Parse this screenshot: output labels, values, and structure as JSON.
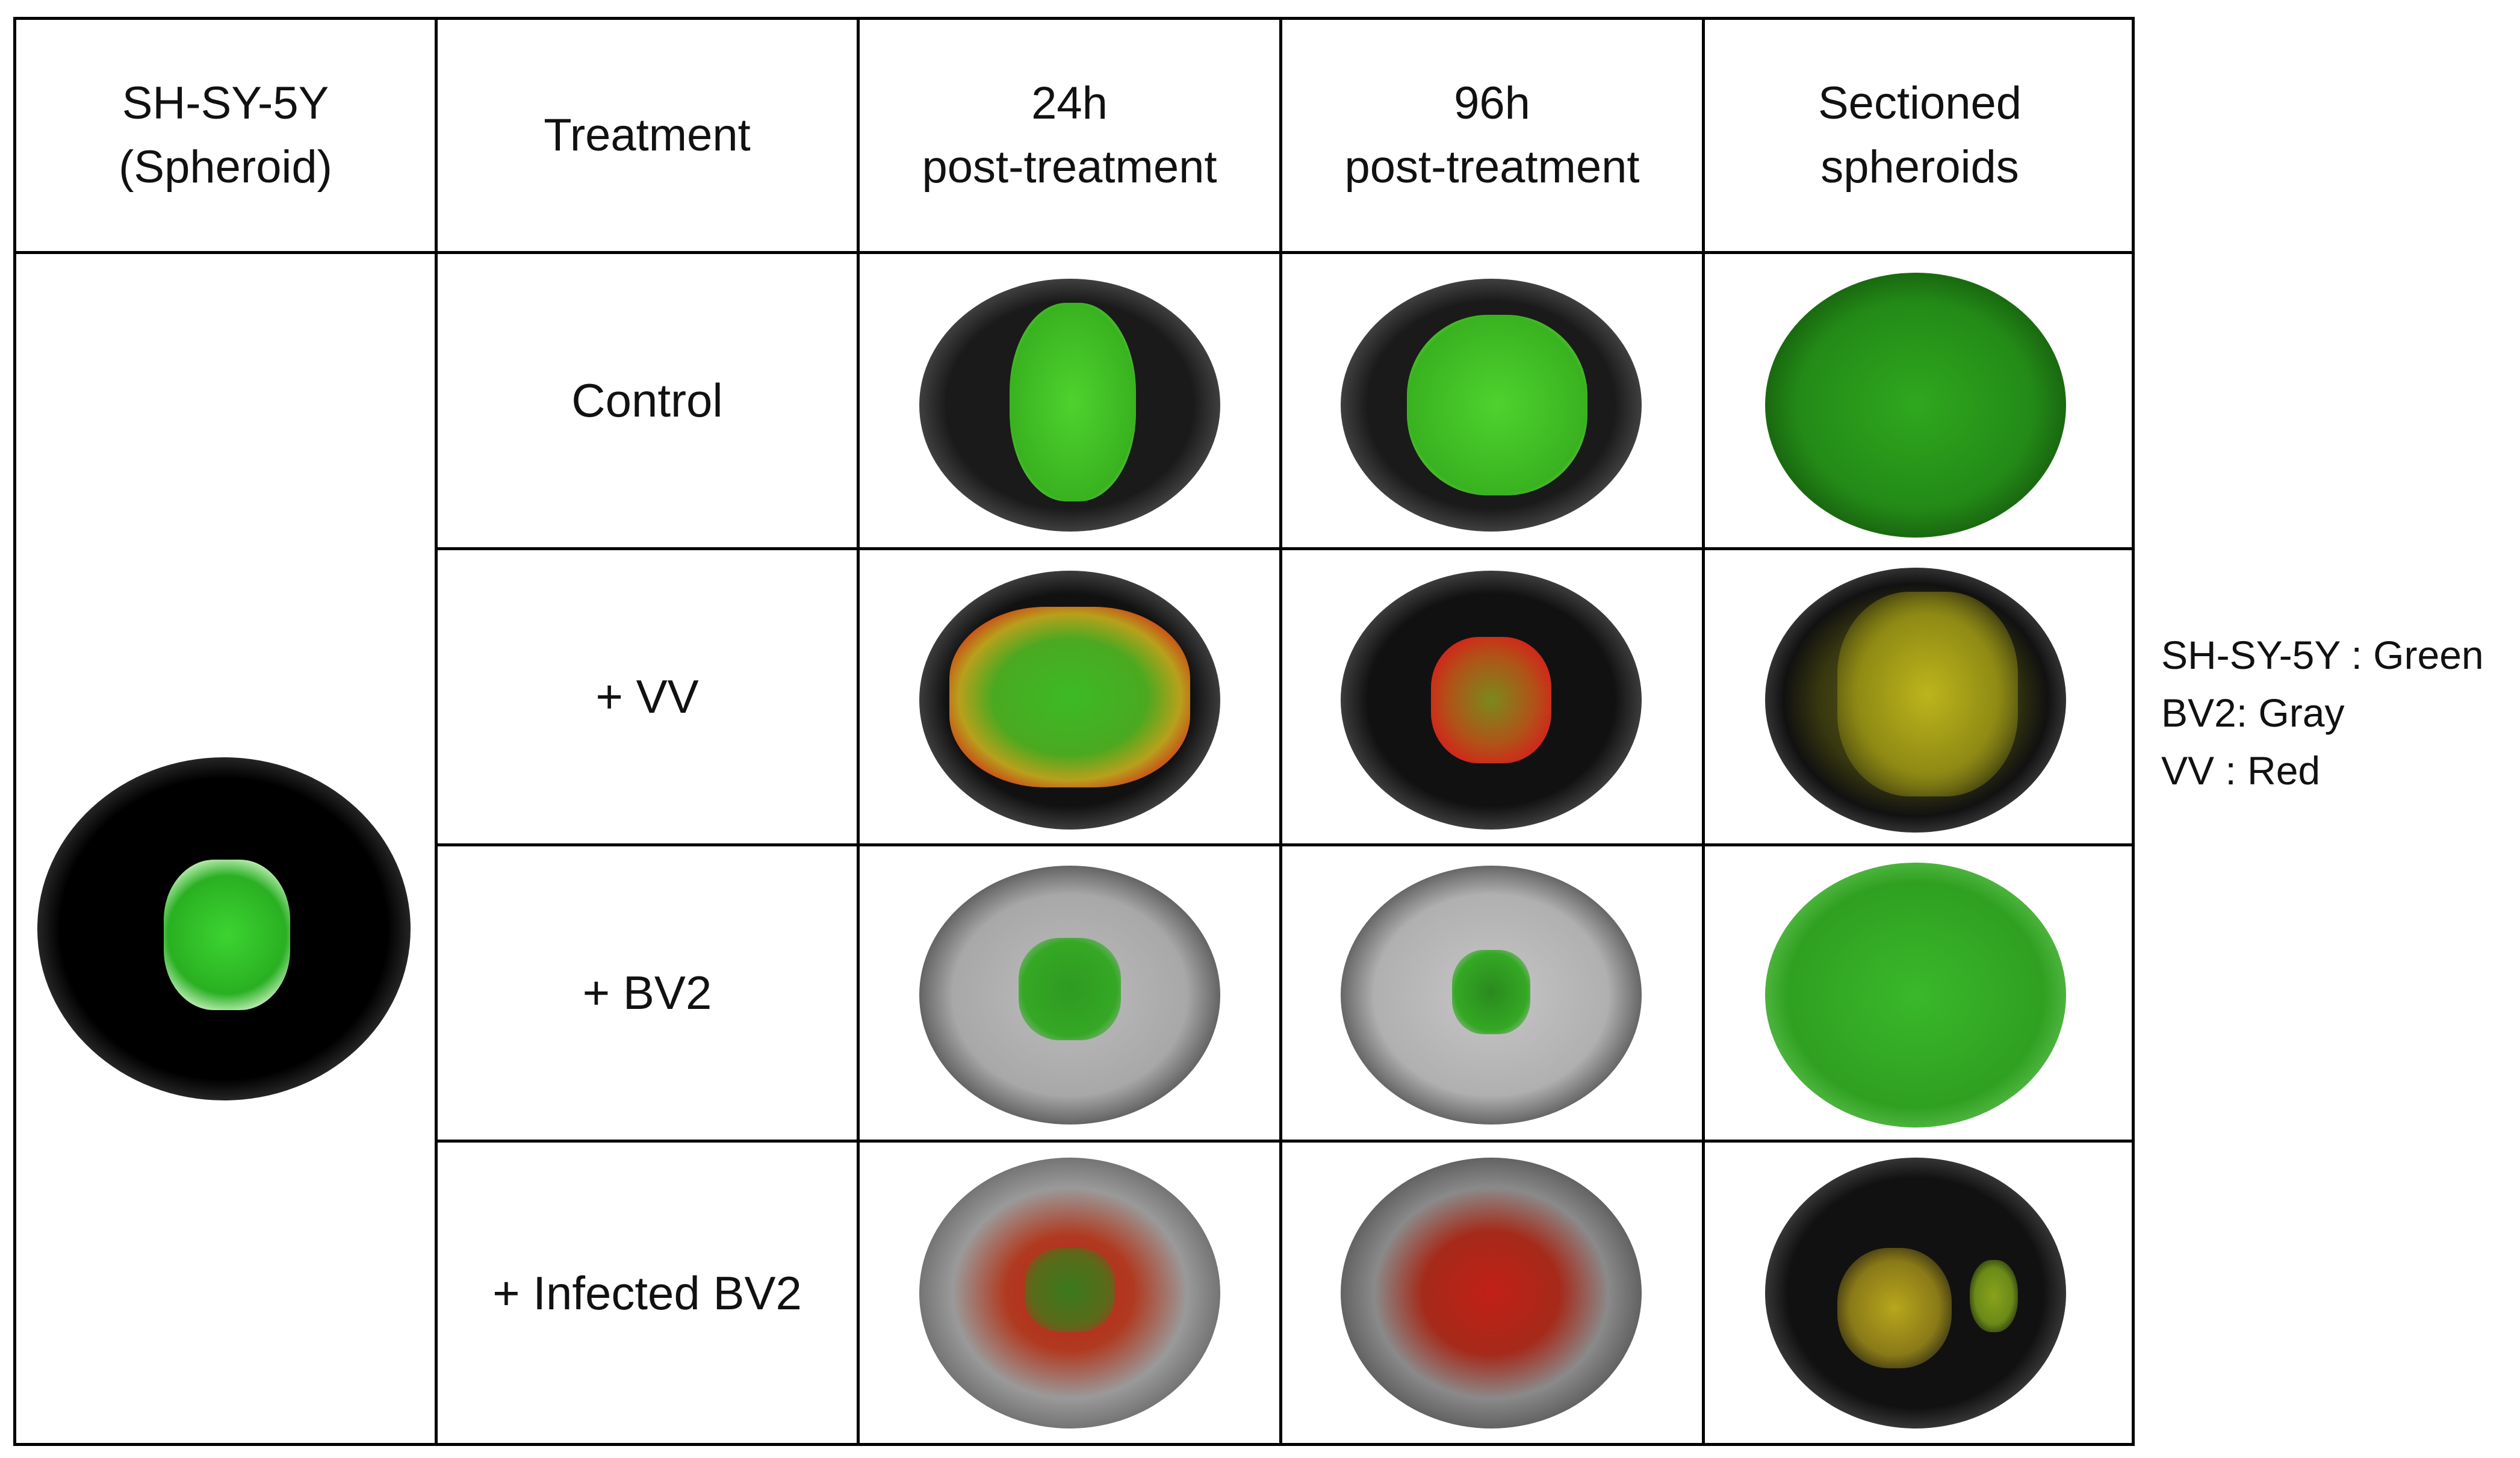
{
  "header": {
    "col1": [
      "SH-SY-5Y",
      "(Spheroid)"
    ],
    "col2": [
      "Treatment"
    ],
    "col3": [
      "24h",
      "post-treatment"
    ],
    "col4": [
      "96h",
      "post-treatment"
    ],
    "col5": [
      "Sectioned",
      "spheroids"
    ]
  },
  "rows": [
    {
      "treatment": "Control"
    },
    {
      "treatment": "+ VV"
    },
    {
      "treatment": "+ BV2"
    },
    {
      "treatment": "+ Infected BV2"
    }
  ],
  "legend": [
    "SH-SY-5Y : Green",
    "BV2: Gray",
    "VV : Red"
  ],
  "colors": {
    "sh_sy_5y": "#2fbf2a",
    "bv2": "#bdbdbd",
    "vv": "#d8251c",
    "overlap": "#c9b81a",
    "background": "#000000"
  }
}
